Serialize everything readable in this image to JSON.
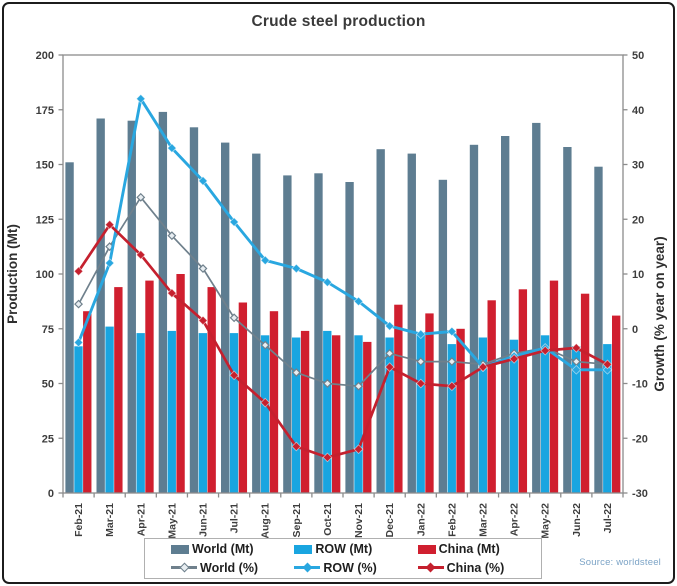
{
  "chart_data": {
    "type": "combo-bar-line",
    "title": "Crude steel production",
    "source": "Source: worldsteel",
    "grid": "off",
    "legend_position": "bottom",
    "categories": [
      "Feb-21",
      "Mar-21",
      "Apr-21",
      "May-21",
      "Jun-21",
      "Jul-21",
      "Aug-21",
      "Sep-21",
      "Oct-21",
      "Nov-21",
      "Dec-21",
      "Jan-22",
      "Feb-22",
      "Mar-22",
      "Apr-22",
      "May-22",
      "Jun-22",
      "Jul-22"
    ],
    "left_axis": {
      "label": "Production (Mt)",
      "min": 0,
      "max": 200,
      "ticks": [
        0,
        25,
        50,
        75,
        100,
        125,
        150,
        175,
        200
      ]
    },
    "right_axis": {
      "label": "Growth (% year on year)",
      "min": -30,
      "max": 50,
      "ticks": [
        -30,
        -20,
        -10,
        0,
        10,
        20,
        30,
        40,
        50
      ]
    },
    "bar_series": [
      {
        "name": "World (Mt)",
        "axis": "left",
        "color": "#5e7d91",
        "values": [
          151,
          171,
          170,
          174,
          167,
          160,
          155,
          145,
          146,
          142,
          157,
          155,
          143,
          159,
          163,
          169,
          158,
          149
        ]
      },
      {
        "name": "ROW (Mt)",
        "axis": "left",
        "color": "#19a5e0",
        "values": [
          67,
          76,
          73,
          74,
          73,
          73,
          72,
          71,
          74,
          72,
          71,
          73,
          68,
          71,
          70,
          72,
          67,
          68
        ]
      },
      {
        "name": "China (Mt)",
        "axis": "left",
        "color": "#d01f2f",
        "values": [
          83,
          94,
          97,
          100,
          94,
          87,
          83,
          74,
          72,
          69,
          86,
          82,
          75,
          88,
          93,
          97,
          91,
          81
        ]
      }
    ],
    "line_series": [
      {
        "name": "World (%)",
        "axis": "right",
        "color": "#6f808c",
        "marker": "open-diamond",
        "values": [
          4.5,
          15,
          24,
          17,
          11,
          2,
          -3,
          -8,
          -10,
          -10.5,
          -4.5,
          -6,
          -6,
          -6.5,
          -4.5,
          -3.5,
          -6,
          -6.5
        ]
      },
      {
        "name": "ROW (%)",
        "axis": "right",
        "color": "#29a7e0",
        "marker": "solid-diamond",
        "values": [
          -2.5,
          12,
          42,
          33,
          27,
          19.5,
          12.5,
          11,
          8.5,
          5,
          0.5,
          -1,
          -0.5,
          -7,
          -5,
          -3.5,
          -7.5,
          -7.5
        ]
      },
      {
        "name": "China (%)",
        "axis": "right",
        "color": "#c5202e",
        "marker": "solid-diamond",
        "values": [
          10.5,
          19,
          13.5,
          6.5,
          1.5,
          -8.5,
          -13.5,
          -21.5,
          -23.5,
          -22,
          -7,
          -10,
          -10.5,
          -7,
          -5.5,
          -4,
          -3.5,
          -6.5
        ]
      }
    ]
  }
}
